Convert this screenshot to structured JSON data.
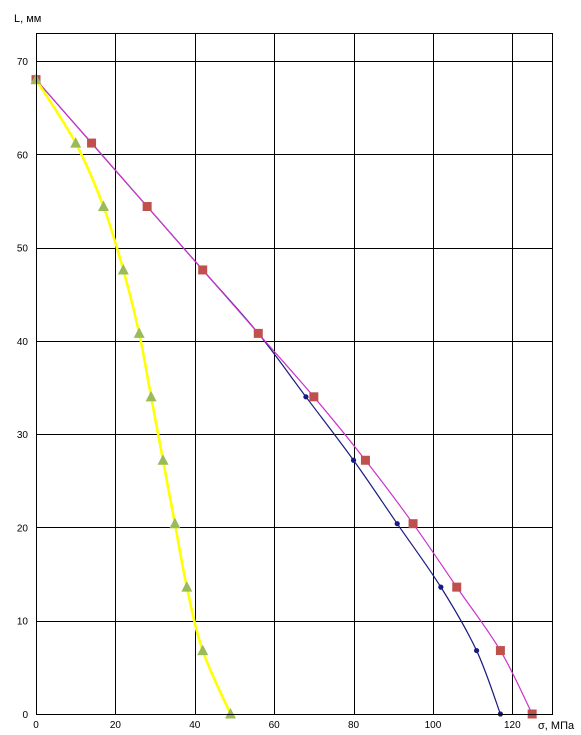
{
  "chart_data": {
    "type": "line",
    "title": "",
    "xlabel": "σ, МПа",
    "ylabel": "L, мм",
    "xlim": [
      0,
      130
    ],
    "ylim": [
      0,
      73
    ],
    "x_ticks": [
      0,
      20,
      40,
      60,
      80,
      100,
      120
    ],
    "y_ticks": [
      0,
      10,
      20,
      30,
      40,
      50,
      60,
      70
    ],
    "grid": true,
    "legend": "none",
    "series": [
      {
        "color": "#1a1a80",
        "marker": "dot",
        "points": [
          {
            "x": 117,
            "y": 0
          },
          {
            "x": 111,
            "y": 6.8
          },
          {
            "x": 102,
            "y": 13.6
          },
          {
            "x": 91,
            "y": 20.4
          },
          {
            "x": 80,
            "y": 27.2
          },
          {
            "x": 68,
            "y": 34.0
          },
          {
            "x": 56,
            "y": 40.8
          },
          {
            "x": 42,
            "y": 47.6
          },
          {
            "x": 28,
            "y": 54.4
          },
          {
            "x": 14,
            "y": 61.2
          },
          {
            "x": 0,
            "y": 68.0
          }
        ]
      },
      {
        "color": "#cc33cc",
        "marker_color": "#c0504d",
        "marker": "square",
        "points": [
          {
            "x": 125,
            "y": 0
          },
          {
            "x": 117,
            "y": 6.8
          },
          {
            "x": 106,
            "y": 13.6
          },
          {
            "x": 95,
            "y": 20.4
          },
          {
            "x": 83,
            "y": 27.2
          },
          {
            "x": 70,
            "y": 34.0
          },
          {
            "x": 56,
            "y": 40.8
          },
          {
            "x": 42,
            "y": 47.6
          },
          {
            "x": 28,
            "y": 54.4
          },
          {
            "x": 14,
            "y": 61.2
          },
          {
            "x": 0,
            "y": 68.0
          }
        ]
      },
      {
        "color": "#ffff00",
        "marker_color": "#9bbb59",
        "marker": "triangle",
        "points": [
          {
            "x": 49,
            "y": 0
          },
          {
            "x": 42,
            "y": 6.8
          },
          {
            "x": 38,
            "y": 13.6
          },
          {
            "x": 35,
            "y": 20.4
          },
          {
            "x": 32,
            "y": 27.2
          },
          {
            "x": 29,
            "y": 34.0
          },
          {
            "x": 26,
            "y": 40.8
          },
          {
            "x": 22,
            "y": 47.6
          },
          {
            "x": 17,
            "y": 54.4
          },
          {
            "x": 10,
            "y": 61.2
          },
          {
            "x": 0,
            "y": 68.0
          }
        ]
      }
    ]
  }
}
